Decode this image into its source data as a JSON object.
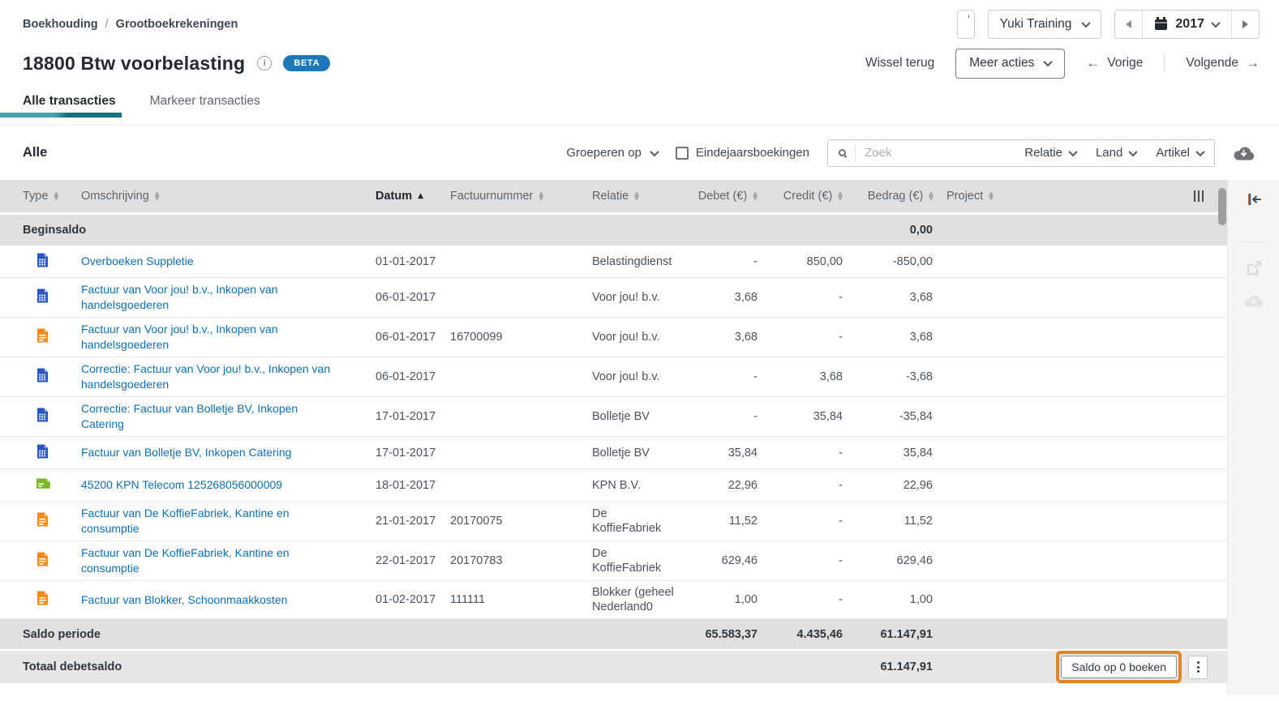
{
  "breadcrumb": {
    "items": [
      "Boekhouding",
      "Grootboekrekeningen"
    ],
    "separator": "/"
  },
  "topbar": {
    "partial_button_text": "'",
    "administration_label": "Yuki Training",
    "year": "2017"
  },
  "page_header": {
    "title": "18800 Btw voorbelasting",
    "info_glyph": "i",
    "beta_label": "BETA",
    "wissel_terug": "Wissel terug",
    "meer_acties": "Meer acties",
    "vorige": "Vorige",
    "volgende": "Volgende",
    "arrow_left": "←",
    "arrow_right": "→"
  },
  "tabs": [
    {
      "label": "Alle transacties",
      "active": true
    },
    {
      "label": "Markeer transacties",
      "active": false
    }
  ],
  "filter_bar": {
    "scope": "Alle",
    "groeperen_op": "Groeperen op",
    "eindejaarsboekingen": "Eindejaarsboekingen",
    "zoek_placeholder": "Zoek",
    "relatie": "Relatie",
    "land": "Land",
    "artikel": "Artikel"
  },
  "table": {
    "columns": [
      {
        "key": "type",
        "label": "Type",
        "sortable": true
      },
      {
        "key": "omschrijving",
        "label": "Omschrijving",
        "sortable": true
      },
      {
        "key": "datum",
        "label": "Datum",
        "sortable": true,
        "sorted": "asc"
      },
      {
        "key": "factuurnummer",
        "label": "Factuurnummer",
        "sortable": true
      },
      {
        "key": "relatie",
        "label": "Relatie",
        "sortable": true
      },
      {
        "key": "debet",
        "label": "Debet (€)",
        "sortable": true
      },
      {
        "key": "credit",
        "label": "Credit (€)",
        "sortable": true
      },
      {
        "key": "bedrag",
        "label": "Bedrag (€)",
        "sortable": true
      },
      {
        "key": "project",
        "label": "Project",
        "sortable": true
      }
    ],
    "begin_row": {
      "label": "Beginsaldo",
      "bedrag": "0,00"
    },
    "rows": [
      {
        "icon": "doc-blue",
        "omschrijving": "Overboeken Suppletie",
        "datum": "01-01-2017",
        "factuurnummer": "",
        "relatie": "Belastingdienst",
        "debet": "-",
        "credit": "850,00",
        "bedrag": "-850,00"
      },
      {
        "icon": "doc-blue",
        "omschrijving": "Factuur van Voor jou! b.v., Inkopen van handelsgoederen",
        "datum": "06-01-2017",
        "factuurnummer": "",
        "relatie": "Voor jou! b.v.",
        "debet": "3,68",
        "credit": "-",
        "bedrag": "3,68"
      },
      {
        "icon": "doc-orange",
        "omschrijving": "Factuur van Voor jou! b.v., Inkopen van handelsgoederen",
        "datum": "06-01-2017",
        "factuurnummer": "16700099",
        "relatie": "Voor jou! b.v.",
        "debet": "3,68",
        "credit": "-",
        "bedrag": "3,68"
      },
      {
        "icon": "doc-blue",
        "omschrijving": "Correctie: Factuur van Voor jou! b.v., Inkopen van handelsgoederen",
        "datum": "06-01-2017",
        "factuurnummer": "",
        "relatie": "Voor jou! b.v.",
        "debet": "-",
        "credit": "3,68",
        "bedrag": "-3,68"
      },
      {
        "icon": "doc-blue",
        "omschrijving": "Correctie: Factuur van Bolletje BV,  Inkopen Catering",
        "datum": "17-01-2017",
        "factuurnummer": "",
        "relatie": "Bolletje BV",
        "debet": "-",
        "credit": "35,84",
        "bedrag": "-35,84"
      },
      {
        "icon": "doc-blue",
        "omschrijving": "Factuur van Bolletje BV,  Inkopen Catering",
        "datum": "17-01-2017",
        "factuurnummer": "",
        "relatie": "Bolletje BV",
        "debet": "35,84",
        "credit": "-",
        "bedrag": "35,84"
      },
      {
        "icon": "doc-green",
        "omschrijving": "45200 KPN Telecom 125268056000009",
        "datum": "18-01-2017",
        "factuurnummer": "",
        "relatie": "KPN B.V.",
        "debet": "22,96",
        "credit": "-",
        "bedrag": "22,96"
      },
      {
        "icon": "doc-orange",
        "omschrijving": "Factuur van De KoffieFabriek, Kantine en consumptie",
        "datum": "21-01-2017",
        "factuurnummer": "20170075",
        "relatie": "De KoffieFabriek",
        "debet": "11,52",
        "credit": "-",
        "bedrag": "11,52"
      },
      {
        "icon": "doc-orange",
        "omschrijving": "Factuur van De KoffieFabriek, Kantine en consumptie",
        "datum": "22-01-2017",
        "factuurnummer": "20170783",
        "relatie": "De KoffieFabriek",
        "debet": "629,46",
        "credit": "-",
        "bedrag": "629,46"
      },
      {
        "icon": "doc-orange",
        "omschrijving": "Factuur van Blokker, Schoonmaakkosten",
        "datum": "01-02-2017",
        "factuurnummer": "111111",
        "relatie": "Blokker (geheel Nederland0",
        "debet": "1,00",
        "credit": "-",
        "bedrag": "1,00"
      }
    ],
    "saldo_periode": {
      "label": "Saldo periode",
      "debet": "65.583,37",
      "credit": "4.435,46",
      "bedrag": "61.147,91"
    },
    "totaal_row": {
      "label": "Totaal debetsaldo",
      "bedrag": "61.147,91",
      "saldo_button": "Saldo op 0 boeken"
    }
  },
  "colors": {
    "accent_teal": "#16707f",
    "link_blue": "#0d6fb8",
    "beta_blue": "#1d78ba",
    "highlight_orange": "#e8831d",
    "doc_blue": "#2a57c3",
    "doc_orange": "#f28a17",
    "doc_green": "#79b829"
  }
}
